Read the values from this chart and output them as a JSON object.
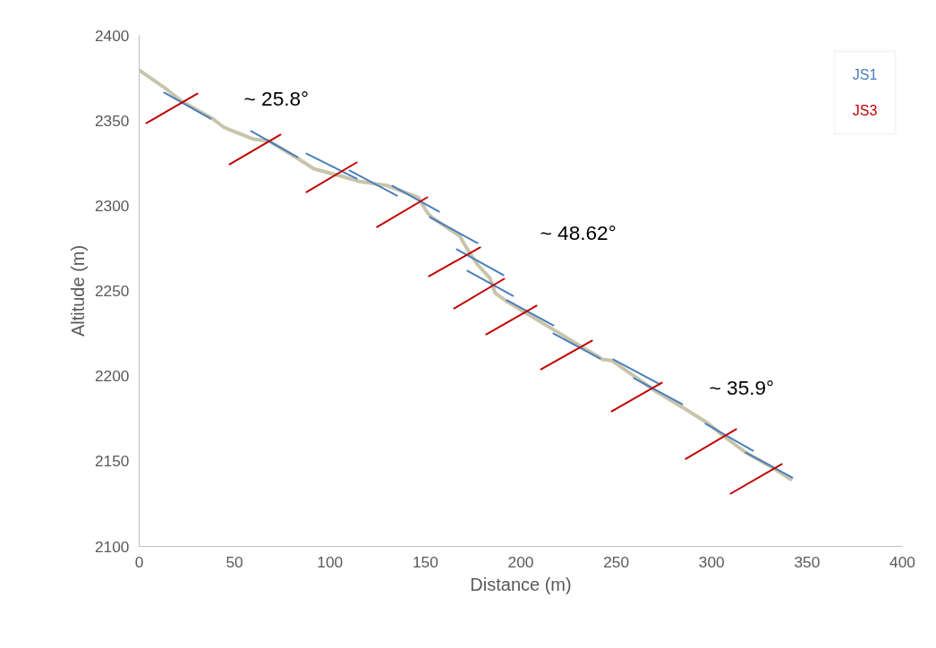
{
  "chart_data": {
    "type": "line",
    "xlabel": "Distance (m)",
    "ylabel": "Altitude (m)",
    "xlim": [
      0,
      400
    ],
    "xticks": [
      0,
      50,
      100,
      150,
      200,
      250,
      300,
      350,
      400
    ],
    "ylim": [
      2100,
      2400
    ],
    "yticks": [
      2100,
      2150,
      2200,
      2250,
      2300,
      2350,
      2400
    ],
    "grid": false,
    "marker": "none",
    "line_style": "solid",
    "series": [
      {
        "color": "#c9c4aa",
        "x": [
          0,
          13.1,
          22.5,
          38.5,
          44.6,
          60.0,
          68.0,
          83.5,
          91.5,
          107.0,
          114.9,
          130.4,
          146.3,
          151.0,
          153.8,
          167.9,
          172.6,
          177.3,
          183.8,
          186.6,
          193.2,
          216.6,
          232.1,
          242.9,
          247.6,
          271.0,
          283.7,
          297.8,
          307.1,
          317.9,
          332.0,
          341.4
        ],
        "values": [
          2379.5,
          2369.5,
          2361.1,
          2351.1,
          2345.9,
          2339.0,
          2338.0,
          2327.5,
          2321.7,
          2317.0,
          2314.4,
          2311.7,
          2304.9,
          2296.0,
          2292.8,
          2282.3,
          2273.4,
          2265.5,
          2257.6,
          2248.7,
          2243.4,
          2227.6,
          2217.1,
          2209.8,
          2209.2,
          2190.9,
          2182.4,
          2172.5,
          2164.1,
          2155.1,
          2146.2,
          2139.3
        ]
      },
      {
        "name": "JS1",
        "color": "#4a7ebb",
        "x": [
          13.1,
          37.5,
          null,
          58.6,
          83.0,
          null,
          87.7,
          114.0,
          null,
          110.2,
          135.1,
          null,
          132.7,
          157.1,
          null,
          152.4,
          177.3,
          null,
          166.5,
          190.9,
          null,
          172.1,
          196.0,
          null,
          192.7,
          217.1,
          null,
          217.1,
          241.5,
          null,
          248.5,
          272.9,
          null,
          259.3,
          284.6,
          null,
          296.8,
          321.7,
          null,
          317.9,
          342.3
        ],
        "values": [
          2366.4,
          2351.1,
          null,
          2343.8,
          2328.5,
          null,
          2330.6,
          2315.9,
          null,
          2320.7,
          2305.9,
          null,
          2311.7,
          2296.5,
          null,
          2293.3,
          2278.1,
          null,
          2274.4,
          2259.2,
          null,
          2261.8,
          2247.1,
          null,
          2244.5,
          2229.7,
          null,
          2225.0,
          2210.3,
          null,
          2209.8,
          2195.1,
          null,
          2198.7,
          2183.5,
          null,
          2172.1,
          2156.2,
          null,
          2155.1,
          2140.4
        ]
      },
      {
        "name": "JS3",
        "color": "#c00000",
        "x": [
          3.8,
          30.5,
          null,
          47.4,
          74.1,
          null,
          87.7,
          114.0,
          null,
          124.7,
          151.0,
          null,
          151.9,
          178.7,
          null,
          165.1,
          191.3,
          null,
          181.9,
          208.2,
          null,
          210.6,
          237.3,
          null,
          247.6,
          273.9,
          null,
          286.5,
          312.8,
          null,
          310.0,
          336.7
        ],
        "values": [
          2348.5,
          2365.8,
          null,
          2324.3,
          2341.7,
          null,
          2308.0,
          2325.4,
          null,
          2287.5,
          2304.9,
          null,
          2258.6,
          2275.5,
          null,
          2239.7,
          2257.1,
          null,
          2224.5,
          2241.3,
          null,
          2204.0,
          2220.8,
          null,
          2179.3,
          2196.1,
          null,
          2151.4,
          2168.8,
          null,
          2131.0,
          2148.3
        ]
      }
    ],
    "annotations": [
      "~ 25.8°",
      "~ 48.62°",
      "~ 35.9°"
    ]
  }
}
